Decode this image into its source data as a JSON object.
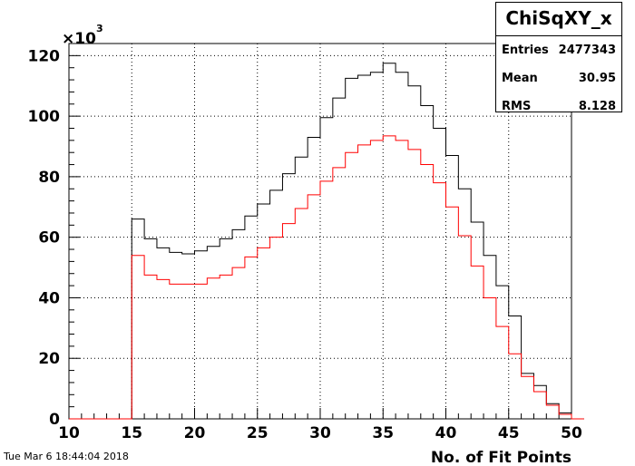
{
  "chart_data": {
    "type": "histogram",
    "title": "ChiSqXY_x",
    "xlabel": "No. of Fit Points",
    "ylabel": "",
    "y_multiplier_label": "×10",
    "y_multiplier_exp": "3",
    "xlim": [
      10,
      50
    ],
    "ylim": [
      0,
      124000
    ],
    "x_ticks": [
      "10",
      "15",
      "20",
      "25",
      "30",
      "35",
      "40",
      "45",
      "50"
    ],
    "y_ticks": [
      "0",
      "20",
      "40",
      "60",
      "80",
      "100",
      "120"
    ],
    "grid": true,
    "bin_width": 1,
    "bin_edges_start": 10,
    "series": [
      {
        "color": "#000000",
        "values": [
          0,
          0,
          0,
          0,
          0,
          66000,
          59500,
          56500,
          55000,
          54500,
          55500,
          57000,
          59500,
          62500,
          67000,
          71000,
          75500,
          81000,
          86500,
          93000,
          99500,
          106000,
          112500,
          113500,
          114500,
          117500,
          114500,
          110000,
          103500,
          96000,
          87000,
          76000,
          65000,
          54000,
          44000,
          34000,
          15000,
          11000,
          5000,
          2000,
          0
        ]
      },
      {
        "color": "#ff0000",
        "values": [
          0,
          0,
          0,
          0,
          0,
          54000,
          47500,
          46000,
          44500,
          44500,
          44500,
          46500,
          47500,
          50000,
          53500,
          56500,
          60000,
          64500,
          69500,
          74000,
          78500,
          83000,
          88000,
          90500,
          92000,
          93500,
          92000,
          89000,
          84000,
          78000,
          70000,
          60500,
          50500,
          40000,
          30500,
          21500,
          14000,
          9000,
          4500,
          1500,
          0
        ]
      }
    ]
  },
  "stats": {
    "title": "ChiSqXY_x",
    "rows": [
      {
        "label": "Entries",
        "value": "2477343"
      },
      {
        "label": "Mean",
        "value": "30.95"
      },
      {
        "label": "RMS",
        "value": "8.128"
      }
    ]
  },
  "datestamp": "Tue Mar  6 18:44:04 2018"
}
